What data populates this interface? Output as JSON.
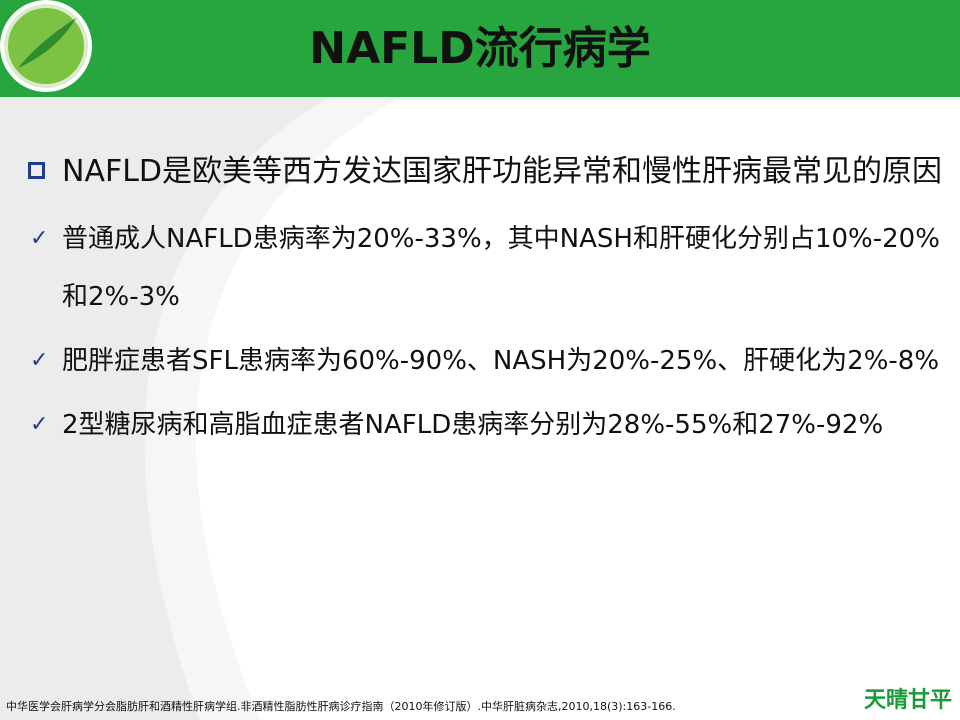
{
  "header": {
    "title": "NAFLD流行病学"
  },
  "content": {
    "lead": "NAFLD是欧美等西方发达国家肝功能异常和慢性肝病最常见的原因",
    "items": [
      "普通成人NAFLD患病率为20%-33%，其中NASH和肝硬化分别占10%-20%和2%-3%",
      "肥胖症患者SFL患病率为60%-90%、NASH为20%-25%、肝硬化为2%-8%",
      "2型糖尿病和高脂血症患者NAFLD患病率分别为28%-55%和27%-92%"
    ]
  },
  "footer": {
    "citation": "中华医学会肝病学分会脂肪肝和酒精性肝病学组.非酒精性脂肪性肝病诊疗指南（2010年修订版）.中华肝脏病杂志,2010,18(3):163-166.",
    "brand": "天晴甘平"
  }
}
